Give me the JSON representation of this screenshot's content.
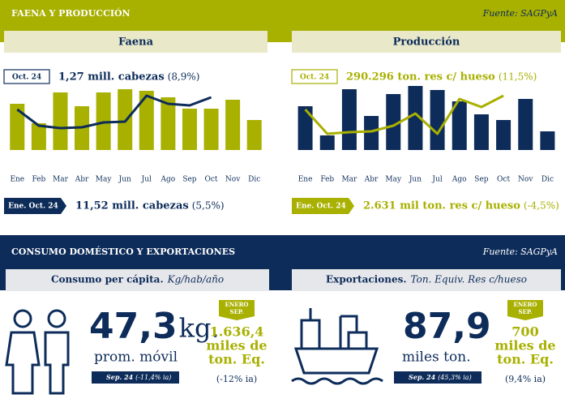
{
  "section1": {
    "title": "FAENA Y PRODUCCIÓN",
    "source": "Fuente: SAGPyA"
  },
  "chart_data": [
    {
      "type": "bar",
      "title": "Faena",
      "categories": [
        "Ene",
        "Feb",
        "Mar",
        "Abr",
        "May",
        "Jun",
        "Jul",
        "Ago",
        "Sep",
        "Oct",
        "Nov",
        "Dic"
      ],
      "ylim": [
        0,
        100
      ],
      "series": [
        {
          "type": "bar",
          "color": "#a8b000",
          "values": [
            57,
            33,
            71,
            54,
            71,
            75,
            73,
            65,
            51,
            51,
            62,
            37
          ]
        },
        {
          "type": "line",
          "color": "#0d2c5a",
          "values": [
            50,
            30,
            27,
            28,
            34,
            35,
            67,
            57,
            55,
            65,
            null,
            null
          ]
        }
      ],
      "latest": {
        "period": "Oct. 24",
        "value": "1,27 mill. cabezas",
        "change": "(8,9%)"
      },
      "cumulative": {
        "period": "Ene. Oct. 24",
        "value": "11,52 mill. cabezas",
        "change": "(5,5%)"
      }
    },
    {
      "type": "bar",
      "title": "Producción",
      "categories": [
        "Ene",
        "Feb",
        "Mar",
        "Abr",
        "May",
        "Jun",
        "Jul",
        "Ago",
        "Sep",
        "Oct",
        "Nov",
        "Dic"
      ],
      "ylim": [
        0,
        100
      ],
      "series": [
        {
          "type": "bar",
          "color": "#0d2c5a",
          "values": [
            54,
            18,
            75,
            42,
            69,
            79,
            74,
            60,
            44,
            37,
            63,
            23
          ]
        },
        {
          "type": "line",
          "color": "#a8b000",
          "values": [
            50,
            20,
            22,
            23,
            30,
            45,
            20,
            63,
            53,
            67,
            null,
            null
          ]
        }
      ],
      "latest": {
        "period": "Oct. 24",
        "value": "290.296 ton. res c/ hueso",
        "change": "(11,5%)"
      },
      "cumulative": {
        "period": "Ene. Oct. 24",
        "value": "2.631 mil ton. res c/ hueso",
        "change": "(-4,5%)"
      }
    }
  ],
  "section2": {
    "title": "CONSUMO DOMÉSTICO Y EXPORTACIONES",
    "source": "Fuente: SAGPyA"
  },
  "panels": [
    {
      "title": "Consumo per cápita.",
      "unit": "Kg/hab/año",
      "value": "47,3",
      "value_unit": "kg.",
      "sub": "prom. móvil",
      "note_period": "Sep. 24",
      "note": "(-11,4% ia)",
      "badge": [
        "ENERO",
        "SEP."
      ],
      "badge_value": [
        "1.636,4",
        "miles de",
        "ton. Eq."
      ],
      "badge_change": "(-12% ia)"
    },
    {
      "title": "Exportaciones.",
      "unit": "Ton. Equiv. Res c/hueso",
      "value": "87,9",
      "value_unit": "",
      "sub": "miles ton.",
      "note_period": "Sep. 24",
      "note": "(45,3% ia)",
      "badge": [
        "ENERO",
        "SEP."
      ],
      "badge_value": [
        "700",
        "miles de",
        "ton. Eq."
      ],
      "badge_change": "(9,4% ia)"
    }
  ]
}
